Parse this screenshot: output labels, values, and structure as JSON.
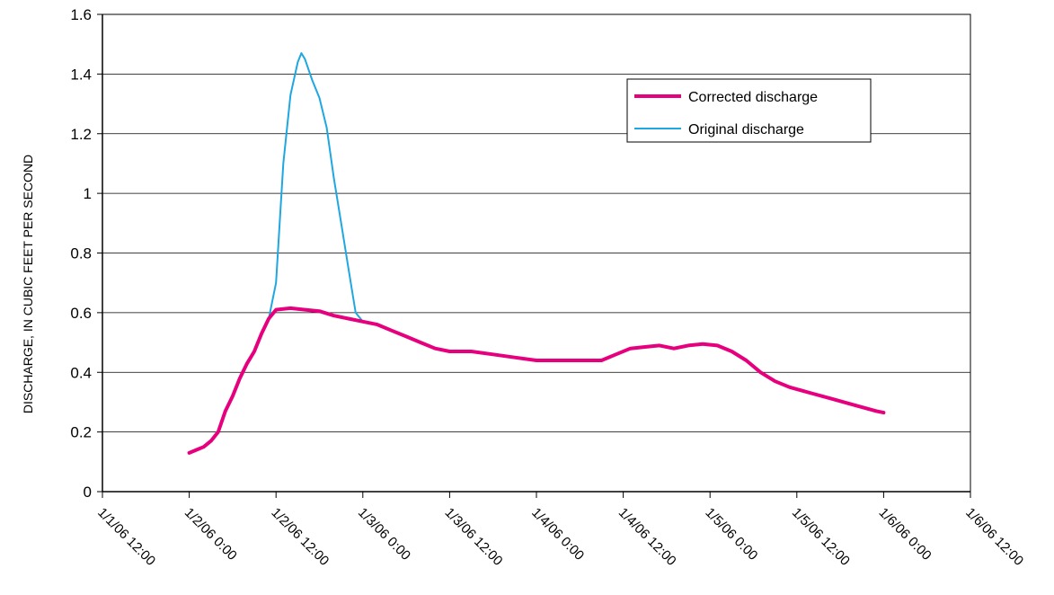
{
  "chart_data": {
    "type": "line",
    "title": "",
    "xlabel": "",
    "ylabel": "DISCHARGE, IN CUBIC FEET PER SECOND",
    "ylim": [
      0,
      1.6
    ],
    "xlim": [
      "1/1/06 12:00",
      "1/6/06 12:00"
    ],
    "yticks": [
      {
        "value": 0,
        "label": "0"
      },
      {
        "value": 0.2,
        "label": "0.2"
      },
      {
        "value": 0.4,
        "label": "0.4"
      },
      {
        "value": 0.6,
        "label": "0.6"
      },
      {
        "value": 0.8,
        "label": "0.8"
      },
      {
        "value": 1.0,
        "label": "1"
      },
      {
        "value": 1.2,
        "label": "1.2"
      },
      {
        "value": 1.4,
        "label": "1.4"
      },
      {
        "value": 1.6,
        "label": "1.6"
      }
    ],
    "xticks": [
      {
        "value": "1/1/06 12:00",
        "label": "1/1/06 12:00"
      },
      {
        "value": "1/2/06 0:00",
        "label": "1/2/06 0:00"
      },
      {
        "value": "1/2/06 12:00",
        "label": "1/2/06 12:00"
      },
      {
        "value": "1/3/06 0:00",
        "label": "1/3/06 0:00"
      },
      {
        "value": "1/3/06 12:00",
        "label": "1/3/06 12:00"
      },
      {
        "value": "1/4/06 0:00",
        "label": "1/4/06 0:00"
      },
      {
        "value": "1/4/06 12:00",
        "label": "1/4/06 12:00"
      },
      {
        "value": "1/5/06 0:00",
        "label": "1/5/06 0:00"
      },
      {
        "value": "1/5/06 12:00",
        "label": "1/5/06 12:00"
      },
      {
        "value": "1/6/06 0:00",
        "label": "1/6/06 0:00"
      },
      {
        "value": "1/6/06 12:00",
        "label": "1/6/06 12:00"
      }
    ],
    "grid": {
      "horizontal": true,
      "vertical": false
    },
    "legend": {
      "position": "top-right"
    },
    "series": [
      {
        "name": "Corrected discharge",
        "color": "#e6007e",
        "points": [
          [
            "1/2/06 0:00",
            0.13
          ],
          [
            "1/2/06 1:00",
            0.14
          ],
          [
            "1/2/06 2:00",
            0.15
          ],
          [
            "1/2/06 3:00",
            0.17
          ],
          [
            "1/2/06 4:00",
            0.2
          ],
          [
            "1/2/06 5:00",
            0.27
          ],
          [
            "1/2/06 6:00",
            0.32
          ],
          [
            "1/2/06 7:00",
            0.38
          ],
          [
            "1/2/06 8:00",
            0.43
          ],
          [
            "1/2/06 9:00",
            0.47
          ],
          [
            "1/2/06 10:00",
            0.53
          ],
          [
            "1/2/06 11:00",
            0.58
          ],
          [
            "1/2/06 12:00",
            0.61
          ],
          [
            "1/2/06 14:00",
            0.615
          ],
          [
            "1/2/06 16:00",
            0.61
          ],
          [
            "1/2/06 18:00",
            0.605
          ],
          [
            "1/2/06 20:00",
            0.59
          ],
          [
            "1/2/06 22:00",
            0.58
          ],
          [
            "1/3/06 0:00",
            0.57
          ],
          [
            "1/3/06 2:00",
            0.56
          ],
          [
            "1/3/06 4:00",
            0.54
          ],
          [
            "1/3/06 6:00",
            0.52
          ],
          [
            "1/3/06 8:00",
            0.5
          ],
          [
            "1/3/06 10:00",
            0.48
          ],
          [
            "1/3/06 12:00",
            0.47
          ],
          [
            "1/3/06 15:00",
            0.47
          ],
          [
            "1/3/06 18:00",
            0.46
          ],
          [
            "1/3/06 21:00",
            0.45
          ],
          [
            "1/4/06 0:00",
            0.44
          ],
          [
            "1/4/06 3:00",
            0.44
          ],
          [
            "1/4/06 6:00",
            0.44
          ],
          [
            "1/4/06 9:00",
            0.44
          ],
          [
            "1/4/06 11:00",
            0.46
          ],
          [
            "1/4/06 13:00",
            0.48
          ],
          [
            "1/4/06 15:00",
            0.485
          ],
          [
            "1/4/06 17:00",
            0.49
          ],
          [
            "1/4/06 19:00",
            0.48
          ],
          [
            "1/4/06 21:00",
            0.49
          ],
          [
            "1/4/06 23:00",
            0.495
          ],
          [
            "1/5/06 1:00",
            0.49
          ],
          [
            "1/5/06 3:00",
            0.47
          ],
          [
            "1/5/06 5:00",
            0.44
          ],
          [
            "1/5/06 7:00",
            0.4
          ],
          [
            "1/5/06 9:00",
            0.37
          ],
          [
            "1/5/06 11:00",
            0.35
          ],
          [
            "1/5/06 14:00",
            0.33
          ],
          [
            "1/5/06 17:00",
            0.31
          ],
          [
            "1/5/06 20:00",
            0.29
          ],
          [
            "1/5/06 23:00",
            0.27
          ],
          [
            "1/6/06 0:00",
            0.265
          ]
        ]
      },
      {
        "name": "Original discharge",
        "color": "#1ea7e1",
        "points": [
          [
            "1/2/06 0:00",
            0.13
          ],
          [
            "1/2/06 1:00",
            0.14
          ],
          [
            "1/2/06 2:00",
            0.15
          ],
          [
            "1/2/06 3:00",
            0.17
          ],
          [
            "1/2/06 4:00",
            0.2
          ],
          [
            "1/2/06 5:00",
            0.27
          ],
          [
            "1/2/06 6:00",
            0.32
          ],
          [
            "1/2/06 7:00",
            0.38
          ],
          [
            "1/2/06 8:00",
            0.43
          ],
          [
            "1/2/06 9:00",
            0.47
          ],
          [
            "1/2/06 10:00",
            0.53
          ],
          [
            "1/2/06 11:00",
            0.58
          ],
          [
            "1/2/06 12:00",
            0.7
          ],
          [
            "1/2/06 13:00",
            1.1
          ],
          [
            "1/2/06 14:00",
            1.33
          ],
          [
            "1/2/06 15:00",
            1.44
          ],
          [
            "1/2/06 15:30",
            1.47
          ],
          [
            "1/2/06 16:00",
            1.45
          ],
          [
            "1/2/06 17:00",
            1.38
          ],
          [
            "1/2/06 18:00",
            1.32
          ],
          [
            "1/2/06 19:00",
            1.22
          ],
          [
            "1/2/06 20:00",
            1.05
          ],
          [
            "1/2/06 21:00",
            0.9
          ],
          [
            "1/2/06 22:00",
            0.75
          ],
          [
            "1/2/06 23:00",
            0.6
          ],
          [
            "1/3/06 0:00",
            0.57
          ],
          [
            "1/3/06 2:00",
            0.56
          ],
          [
            "1/3/06 4:00",
            0.54
          ],
          [
            "1/3/06 6:00",
            0.52
          ],
          [
            "1/3/06 8:00",
            0.5
          ],
          [
            "1/3/06 10:00",
            0.48
          ],
          [
            "1/3/06 12:00",
            0.47
          ],
          [
            "1/3/06 15:00",
            0.47
          ],
          [
            "1/3/06 18:00",
            0.46
          ],
          [
            "1/3/06 21:00",
            0.45
          ],
          [
            "1/4/06 0:00",
            0.44
          ],
          [
            "1/4/06 3:00",
            0.44
          ],
          [
            "1/4/06 6:00",
            0.44
          ],
          [
            "1/4/06 9:00",
            0.44
          ],
          [
            "1/4/06 11:00",
            0.46
          ],
          [
            "1/4/06 13:00",
            0.48
          ],
          [
            "1/4/06 15:00",
            0.485
          ],
          [
            "1/4/06 17:00",
            0.49
          ],
          [
            "1/4/06 19:00",
            0.48
          ],
          [
            "1/4/06 21:00",
            0.49
          ],
          [
            "1/4/06 23:00",
            0.495
          ],
          [
            "1/5/06 1:00",
            0.49
          ],
          [
            "1/5/06 3:00",
            0.47
          ],
          [
            "1/5/06 5:00",
            0.44
          ],
          [
            "1/5/06 7:00",
            0.4
          ],
          [
            "1/5/06 9:00",
            0.37
          ],
          [
            "1/5/06 11:00",
            0.35
          ],
          [
            "1/5/06 14:00",
            0.33
          ],
          [
            "1/5/06 17:00",
            0.31
          ],
          [
            "1/5/06 20:00",
            0.29
          ],
          [
            "1/5/06 23:00",
            0.27
          ],
          [
            "1/6/06 0:00",
            0.265
          ]
        ]
      }
    ]
  }
}
